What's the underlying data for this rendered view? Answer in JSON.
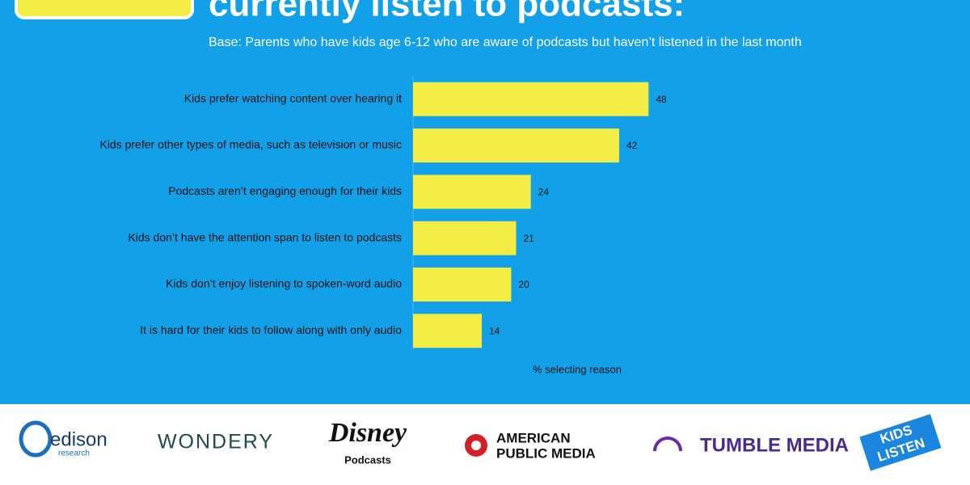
{
  "chart_data": {
    "type": "bar",
    "orientation": "horizontal",
    "title": "currently listen to podcasts:",
    "subtitle": "Base: Parents who have kids age 6-12 who are aware of podcasts but haven’t listened in the last month",
    "x_label": "% selecting reason",
    "categories": [
      "Kids prefer watching content over hearing it",
      "Kids prefer other types of media, such as television or music",
      "Podcasts aren’t engaging enough for their kids",
      "Kids don’t have the attention span to listen to podcasts",
      "Kids don’t enjoy listening to spoken-word audio",
      "It is hard for their kids to follow along with only audio"
    ],
    "values": [
      48,
      42,
      24,
      21,
      20,
      14
    ],
    "color": "#f2ec45",
    "xlim": [
      0,
      100
    ]
  },
  "logos": {
    "edison": "edison",
    "edison_sub": "research",
    "wondery": "WONDERY",
    "disney": "Disney",
    "disney_sub": "Podcasts",
    "apm_1": "AMERICAN",
    "apm_2": "PUBLIC MEDIA",
    "tumble": "TUMBLE MEDIA",
    "kids_1": "KIDS",
    "kids_2": "LISTEN"
  }
}
